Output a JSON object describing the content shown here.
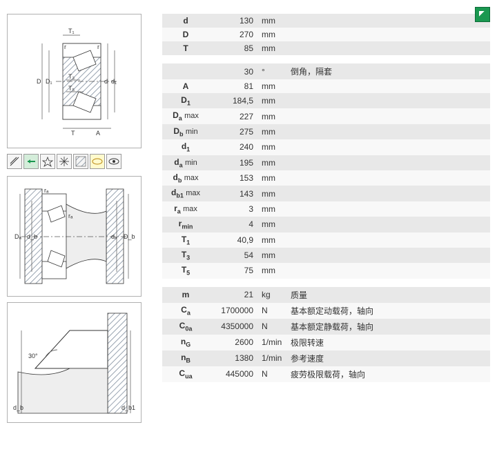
{
  "main_dims": [
    {
      "sym": "d",
      "val": "130",
      "unit": "mm"
    },
    {
      "sym": "D",
      "val": "270",
      "unit": "mm"
    },
    {
      "sym": "T",
      "val": "85",
      "unit": "mm"
    }
  ],
  "chamfer_header": {
    "angle": "30",
    "deg": "°",
    "label": "倒角，隔套"
  },
  "detail_dims": [
    {
      "sym": "A",
      "sub": "",
      "suf": "",
      "val": "81",
      "unit": "mm"
    },
    {
      "sym": "D",
      "sub": "1",
      "suf": "",
      "val": "184,5",
      "unit": "mm"
    },
    {
      "sym": "D",
      "sub": "a",
      "suf": "max",
      "val": "227",
      "unit": "mm"
    },
    {
      "sym": "D",
      "sub": "b",
      "suf": "min",
      "val": "275",
      "unit": "mm"
    },
    {
      "sym": "d",
      "sub": "1",
      "suf": "",
      "val": "240",
      "unit": "mm"
    },
    {
      "sym": "d",
      "sub": "a",
      "suf": "min",
      "val": "195",
      "unit": "mm"
    },
    {
      "sym": "d",
      "sub": "b",
      "suf": "max",
      "val": "153",
      "unit": "mm"
    },
    {
      "sym": "d",
      "sub": "b1",
      "suf": "max",
      "val": "143",
      "unit": "mm"
    },
    {
      "sym": "r",
      "sub": "a",
      "suf": "max",
      "val": "3",
      "unit": "mm"
    },
    {
      "sym": "r",
      "sub": "min",
      "suf": "",
      "val": "4",
      "unit": "mm"
    },
    {
      "sym": "T",
      "sub": "1",
      "suf": "",
      "val": "40,9",
      "unit": "mm"
    },
    {
      "sym": "T",
      "sub": "3",
      "suf": "",
      "val": "54",
      "unit": "mm"
    },
    {
      "sym": "T",
      "sub": "5",
      "suf": "",
      "val": "75",
      "unit": "mm"
    }
  ],
  "load_specs": [
    {
      "sym": "m",
      "sub": "",
      "val": "21",
      "unit": "kg",
      "desc": "质量"
    },
    {
      "sym": "C",
      "sub": "a",
      "val": "1700000",
      "unit": "N",
      "desc": "基本额定动载荷，轴向"
    },
    {
      "sym": "C",
      "sub": "0a",
      "val": "4350000",
      "unit": "N",
      "desc": "基本额定静载荷，轴向"
    },
    {
      "sym": "n",
      "sub": "G",
      "val": "2600",
      "unit": "1/min",
      "desc": "极限转速"
    },
    {
      "sym": "n",
      "sub": "B",
      "val": "1380",
      "unit": "1/min",
      "desc": "参考速度"
    },
    {
      "sym": "C",
      "sub": "ua",
      "val": "445000",
      "unit": "N",
      "desc": "疲劳极限载荷，轴向"
    }
  ],
  "diag3_angle": "30°",
  "diag_labels": {
    "T1": "T₁",
    "T3": "T₃",
    "T5": "T₅",
    "D": "D",
    "D1": "D₁",
    "d": "d",
    "d1": "d₁",
    "T": "T",
    "A": "A",
    "r": "r",
    "ra": "rₐ",
    "Da": "Dₐ",
    "da": "dₐ",
    "db": "d_b",
    "Db": "D_b",
    "db1": "d_b1"
  }
}
